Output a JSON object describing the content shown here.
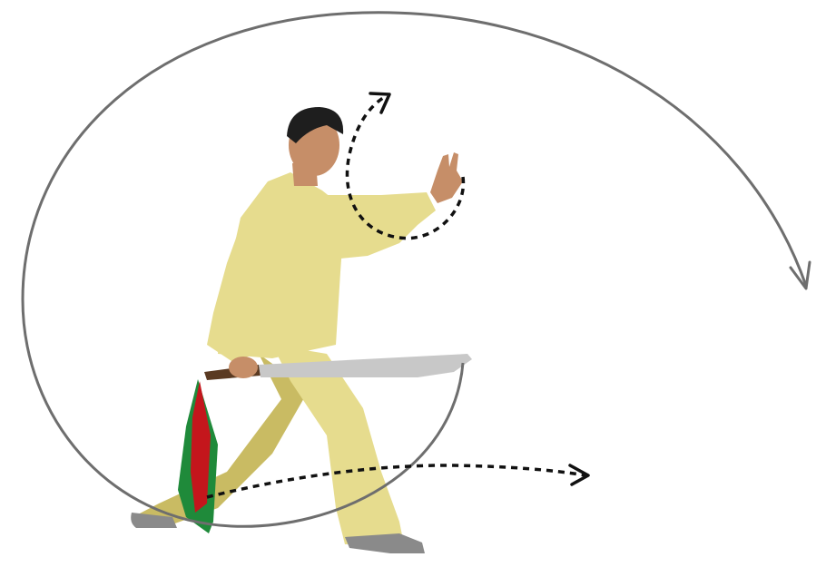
{
  "figure": {
    "subject": "tai-chi-broadsword-practitioner",
    "colors": {
      "background": "#ffffff",
      "uniform": "#e6dc8e",
      "uniform_shadow": "#c9bb63",
      "skin": "#c68e68",
      "hair": "#1e1e1e",
      "blade": "#c8c8c8",
      "handle": "#5a3a22",
      "scarf_red": "#c4161c",
      "scarf_green": "#1f8a3a",
      "shoe": "#8a8a8a",
      "big_arc": "#6e6e6e",
      "dashed_arrow": "#111111"
    }
  },
  "arrows": [
    {
      "name": "large-sweep-arc-arrow",
      "style": "solid"
    },
    {
      "name": "hand-circle-dashed-arrow",
      "style": "dashed"
    },
    {
      "name": "forward-step-dashed-arrow",
      "style": "dashed"
    }
  ]
}
